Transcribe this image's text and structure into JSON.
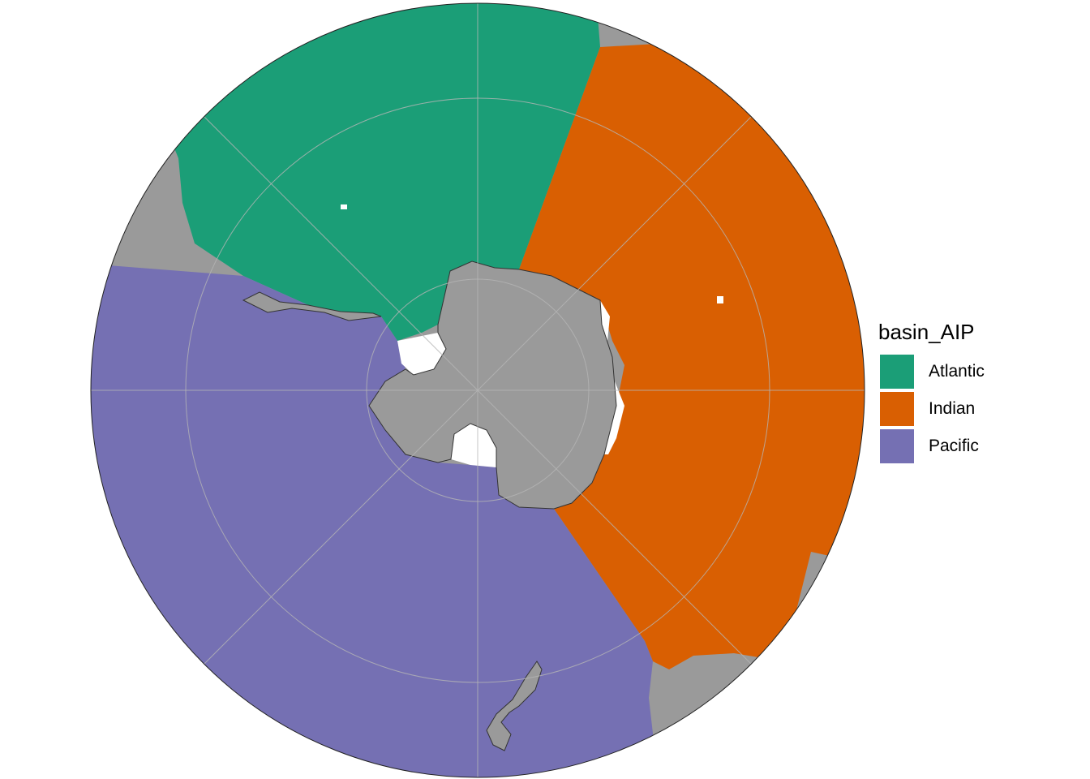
{
  "legend": {
    "title": "basin_AIP",
    "items": [
      {
        "label": "Atlantic",
        "color": "#1b9e77"
      },
      {
        "label": "Indian",
        "color": "#d95f02"
      },
      {
        "label": "Pacific",
        "color": "#7570b3"
      }
    ]
  },
  "colors": {
    "land": "#9a9a9a",
    "graticule": "#b5b5b5",
    "background": "#ffffff"
  }
}
